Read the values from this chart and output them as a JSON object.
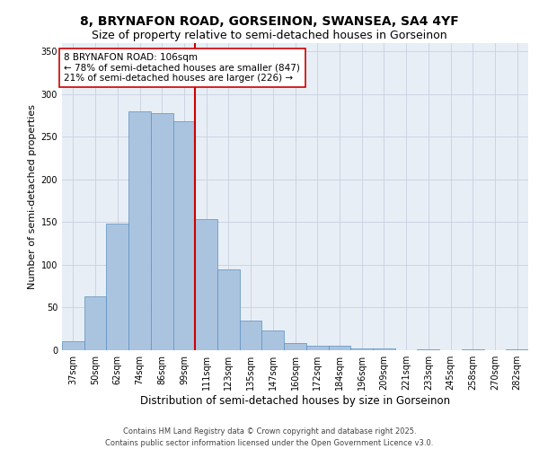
{
  "title_line1": "8, BRYNAFON ROAD, GORSEINON, SWANSEA, SA4 4YF",
  "title_line2": "Size of property relative to semi-detached houses in Gorseinon",
  "xlabel": "Distribution of semi-detached houses by size in Gorseinon",
  "ylabel": "Number of semi-detached properties",
  "bins": [
    "37sqm",
    "50sqm",
    "62sqm",
    "74sqm",
    "86sqm",
    "99sqm",
    "111sqm",
    "123sqm",
    "135sqm",
    "147sqm",
    "160sqm",
    "172sqm",
    "184sqm",
    "196sqm",
    "209sqm",
    "221sqm",
    "233sqm",
    "245sqm",
    "258sqm",
    "270sqm",
    "282sqm"
  ],
  "values": [
    10,
    63,
    148,
    280,
    278,
    268,
    153,
    95,
    35,
    23,
    8,
    5,
    5,
    2,
    2,
    0,
    1,
    0,
    1,
    0,
    1
  ],
  "bar_color": "#aac4e0",
  "bar_edge_color": "#5a8fc0",
  "vline_x_idx": 6,
  "vline_color": "#cc0000",
  "annotation_text": "8 BRYNAFON ROAD: 106sqm\n← 78% of semi-detached houses are smaller (847)\n21% of semi-detached houses are larger (226) →",
  "annotation_box_color": "#ffffff",
  "annotation_box_edge_color": "#cc0000",
  "ylim": [
    0,
    360
  ],
  "yticks": [
    0,
    50,
    100,
    150,
    200,
    250,
    300,
    350
  ],
  "background_color": "#e8eef5",
  "footer_text": "Contains HM Land Registry data © Crown copyright and database right 2025.\nContains public sector information licensed under the Open Government Licence v3.0.",
  "title_fontsize": 10,
  "subtitle_fontsize": 9,
  "axis_label_fontsize": 8.5,
  "tick_fontsize": 7,
  "annotation_fontsize": 7.5,
  "footer_fontsize": 6,
  "ylabel_fontsize": 8
}
